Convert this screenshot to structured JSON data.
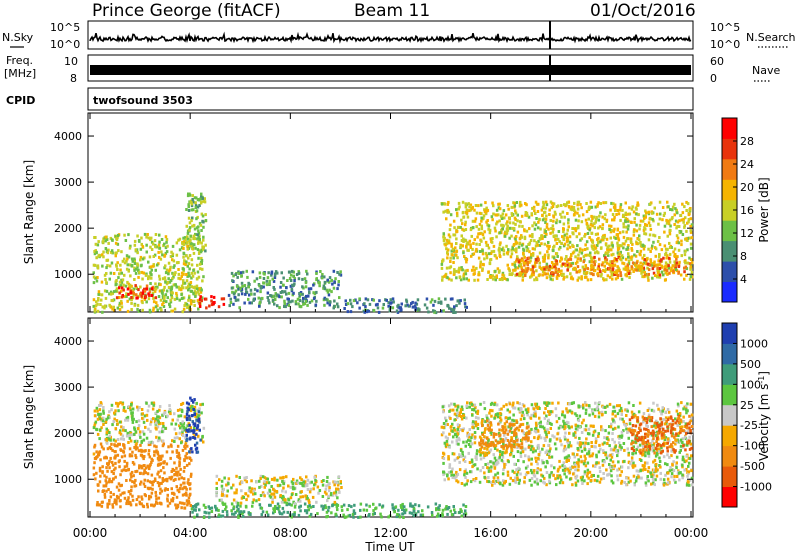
{
  "header": {
    "station": "Prince George (fitACF)",
    "beam": "Beam 11",
    "date": "01/Oct/2016"
  },
  "top_panels": {
    "nsky_label": "N.Sky",
    "nsearch_label": "N.Search",
    "nsky_ticks": [
      "10^5",
      "10^0"
    ],
    "nsearch_ticks": [
      "10^5",
      "10^0"
    ],
    "freq_label": "Freq.",
    "freq_unit": "[MHz]",
    "freq_ticks": [
      "10",
      "8"
    ],
    "nave_label": "Nave",
    "nave_ticks": [
      "60",
      "0"
    ],
    "cpid_label": "CPID",
    "cpid_value": "twofsound 3503"
  },
  "axes": {
    "ylabel": "Slant Range [km]",
    "xlabel": "Time UT",
    "y_ticks": [
      "1000",
      "2000",
      "3000",
      "4000"
    ],
    "x_ticks": [
      "00:00",
      "04:00",
      "08:00",
      "12:00",
      "16:00",
      "20:00",
      "00:00"
    ]
  },
  "power_colorbar": {
    "label": "Power [dB]",
    "ticks": [
      "4",
      "8",
      "12",
      "16",
      "20",
      "24",
      "28"
    ],
    "colors": [
      "#1a2bff",
      "#2d4faa",
      "#4a8f73",
      "#6cc046",
      "#c8cf26",
      "#f5b400",
      "#f07a12",
      "#e8330c",
      "#ff0000"
    ]
  },
  "velocity_colorbar": {
    "label": "Velocity [m s^-1]",
    "ticks": [
      "1000",
      "500",
      "100",
      "25",
      "-25",
      "-100",
      "-500",
      "-1000"
    ],
    "colors": [
      "#1f3fb0",
      "#2f6aa5",
      "#3f9c7a",
      "#5cc640",
      "#c8c8c8",
      "#f5a800",
      "#f08a10",
      "#e85a0a",
      "#ff0000"
    ]
  },
  "chart_data": [
    {
      "type": "heatmap",
      "title": "",
      "xlabel": "Time UT",
      "ylabel": "Slant Range [km]",
      "xlim": [
        0,
        24
      ],
      "ylim": [
        180,
        4500
      ],
      "colorbar_label": "Power [dB]",
      "clim": [
        0,
        30
      ],
      "echo_regions": [
        {
          "t0": 0.1,
          "t1": 4.5,
          "r0": 200,
          "r1": 1900,
          "level": 14
        },
        {
          "t0": 1.0,
          "t1": 2.6,
          "r0": 500,
          "r1": 800,
          "level": 27
        },
        {
          "t0": 3.8,
          "t1": 4.6,
          "r0": 1500,
          "r1": 2800,
          "level": 12
        },
        {
          "t0": 4.3,
          "t1": 5.3,
          "r0": 300,
          "r1": 550,
          "level": 29
        },
        {
          "t0": 5.5,
          "t1": 10.0,
          "r0": 300,
          "r1": 1100,
          "level": 8
        },
        {
          "t0": 10.0,
          "t1": 15.0,
          "r0": 200,
          "r1": 500,
          "level": 6
        },
        {
          "t0": 14.0,
          "t1": 24.0,
          "r0": 900,
          "r1": 2600,
          "level": 16
        },
        {
          "t0": 17.0,
          "t1": 24.0,
          "r0": 1000,
          "r1": 1400,
          "level": 22
        }
      ]
    },
    {
      "type": "heatmap",
      "title": "",
      "xlabel": "Time UT",
      "ylabel": "Slant Range [km]",
      "xlim": [
        0,
        24
      ],
      "ylim": [
        180,
        4500
      ],
      "colorbar_label": "Velocity [m s^-1]",
      "clim": [
        -1000,
        1000
      ],
      "echo_regions": [
        {
          "t0": 0.1,
          "t1": 4.0,
          "r0": 400,
          "r1": 1800,
          "level": -200
        },
        {
          "t0": 0.1,
          "t1": 4.5,
          "r0": 1800,
          "r1": 2700,
          "level": 0
        },
        {
          "t0": 3.8,
          "t1": 4.4,
          "r0": 1600,
          "r1": 2800,
          "level": 800
        },
        {
          "t0": 4.0,
          "t1": 15.0,
          "r0": 200,
          "r1": 500,
          "level": 150
        },
        {
          "t0": 5.0,
          "t1": 10.0,
          "r0": 500,
          "r1": 1100,
          "level": 0
        },
        {
          "t0": 14.0,
          "t1": 24.0,
          "r0": 900,
          "r1": 2700,
          "level": 0
        },
        {
          "t0": 15.5,
          "t1": 17.5,
          "r0": 1700,
          "r1": 2300,
          "level": -300
        },
        {
          "t0": 21.5,
          "t1": 24.0,
          "r0": 1600,
          "r1": 2400,
          "level": -400
        }
      ]
    }
  ]
}
